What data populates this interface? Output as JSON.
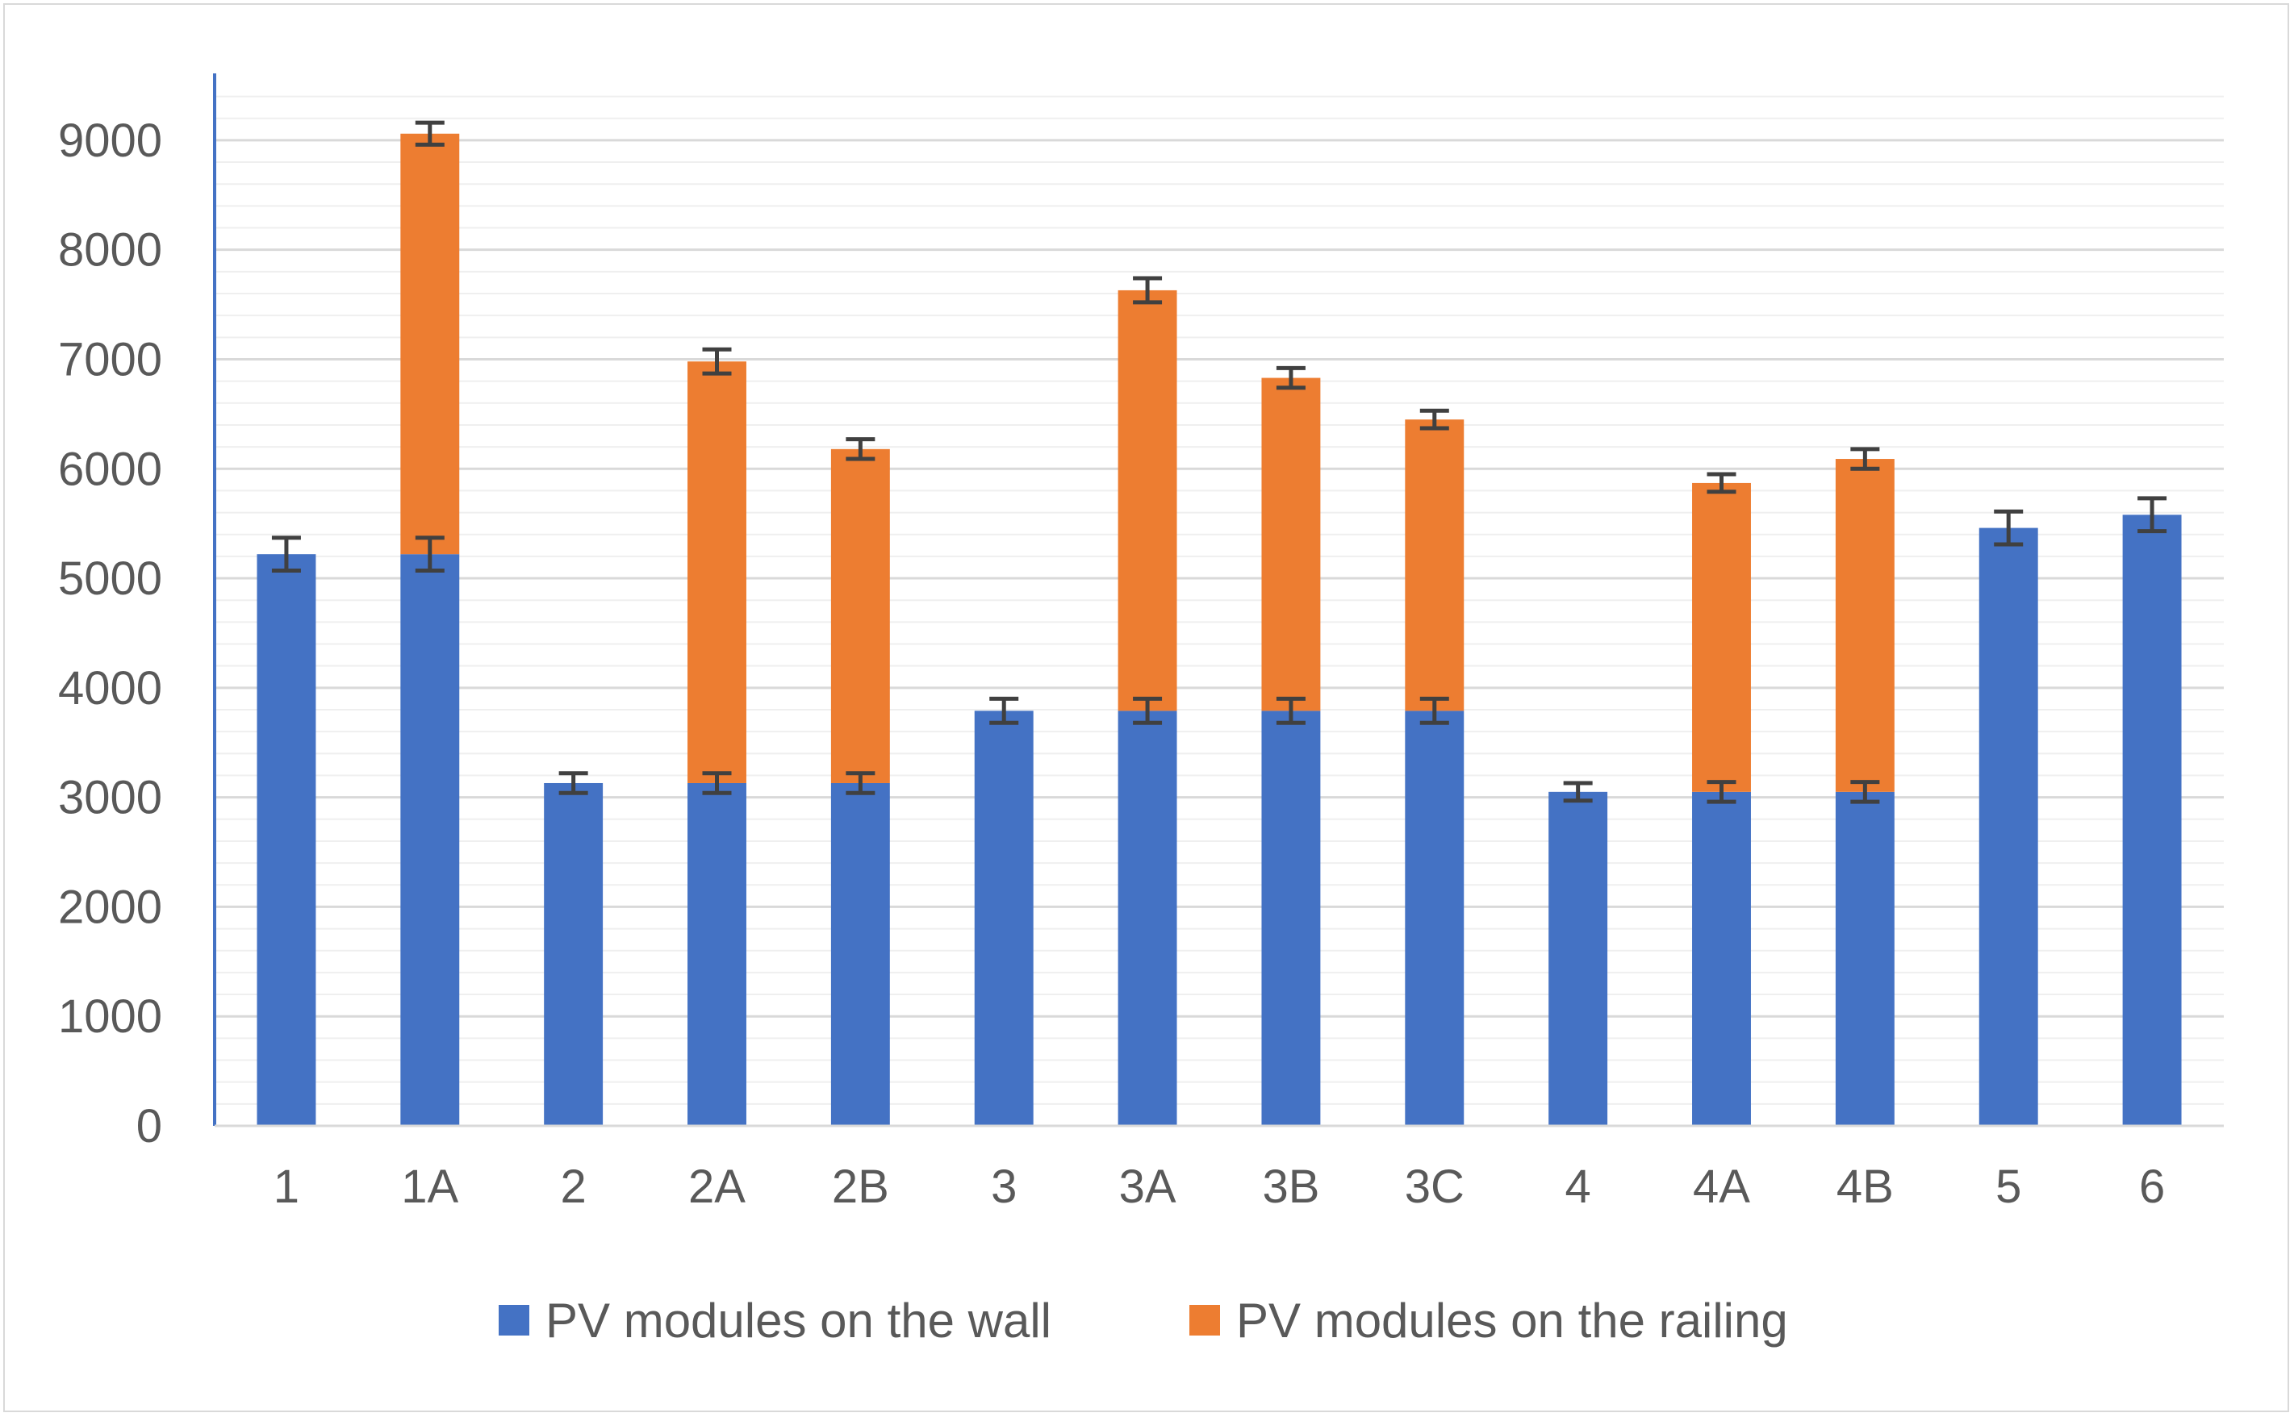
{
  "chart_data": {
    "type": "bar",
    "stacked": true,
    "categories": [
      "1",
      "1A",
      "2",
      "2A",
      "2B",
      "3",
      "3A",
      "3B",
      "3C",
      "4",
      "4A",
      "4B",
      "5",
      "6"
    ],
    "series": [
      {
        "name": "PV modules on the wall",
        "color": "#4472c4",
        "values": [
          5220,
          5220,
          3130,
          3130,
          3130,
          3790,
          3790,
          3790,
          3790,
          3050,
          3050,
          3050,
          5460,
          5580
        ],
        "error": [
          150,
          150,
          90,
          90,
          90,
          110,
          110,
          110,
          110,
          80,
          90,
          90,
          150,
          150
        ]
      },
      {
        "name": "PV modules on the railing",
        "color": "#ed7d31",
        "values": [
          0,
          3840,
          0,
          3850,
          3050,
          0,
          3840,
          3040,
          2660,
          0,
          2820,
          3040,
          0,
          0
        ],
        "error": [
          0,
          100,
          0,
          110,
          90,
          0,
          110,
          90,
          80,
          0,
          80,
          90,
          0,
          0
        ]
      }
    ],
    "y_ticks": [
      "0",
      "1000",
      "2000",
      "3000",
      "4000",
      "5000",
      "6000",
      "7000",
      "8000",
      "9000"
    ],
    "ylim": [
      0,
      9500
    ],
    "grid": true,
    "legend_position": "bottom"
  }
}
